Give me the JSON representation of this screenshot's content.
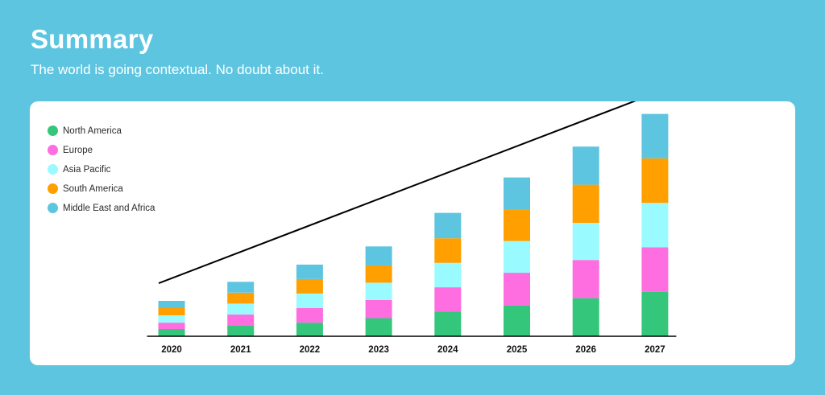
{
  "header": {
    "title": "Summary",
    "subtitle": "The world is going contextual. No doubt about it."
  },
  "colors": {
    "background": "#5ec5e0",
    "card": "#ffffff",
    "series": [
      "#34c77b",
      "#ff6ee0",
      "#99fbff",
      "#ff9f00",
      "#5ec5e0"
    ]
  },
  "chart_data": {
    "type": "bar",
    "stacked": true,
    "categories": [
      "2020",
      "2021",
      "2022",
      "2023",
      "2024",
      "2025",
      "2026",
      "2027"
    ],
    "series": [
      {
        "name": "North America",
        "values": [
          8,
          12,
          15,
          20,
          27,
          34,
          42,
          49
        ]
      },
      {
        "name": "Europe",
        "values": [
          7,
          12,
          16,
          20,
          27,
          36,
          42,
          49
        ]
      },
      {
        "name": "Asia Pacific",
        "values": [
          8,
          12,
          16,
          19,
          27,
          35,
          41,
          49
        ]
      },
      {
        "name": "South America",
        "values": [
          8,
          12,
          16,
          19,
          27,
          35,
          42,
          49
        ]
      },
      {
        "name": "Middle East and Africa",
        "values": [
          8,
          12,
          16,
          21,
          28,
          35,
          42,
          49
        ]
      }
    ],
    "ylim": [
      0,
      250
    ],
    "trend_arrow": true,
    "axis_ticks": false,
    "grid": false,
    "legend_position": "top-left"
  }
}
